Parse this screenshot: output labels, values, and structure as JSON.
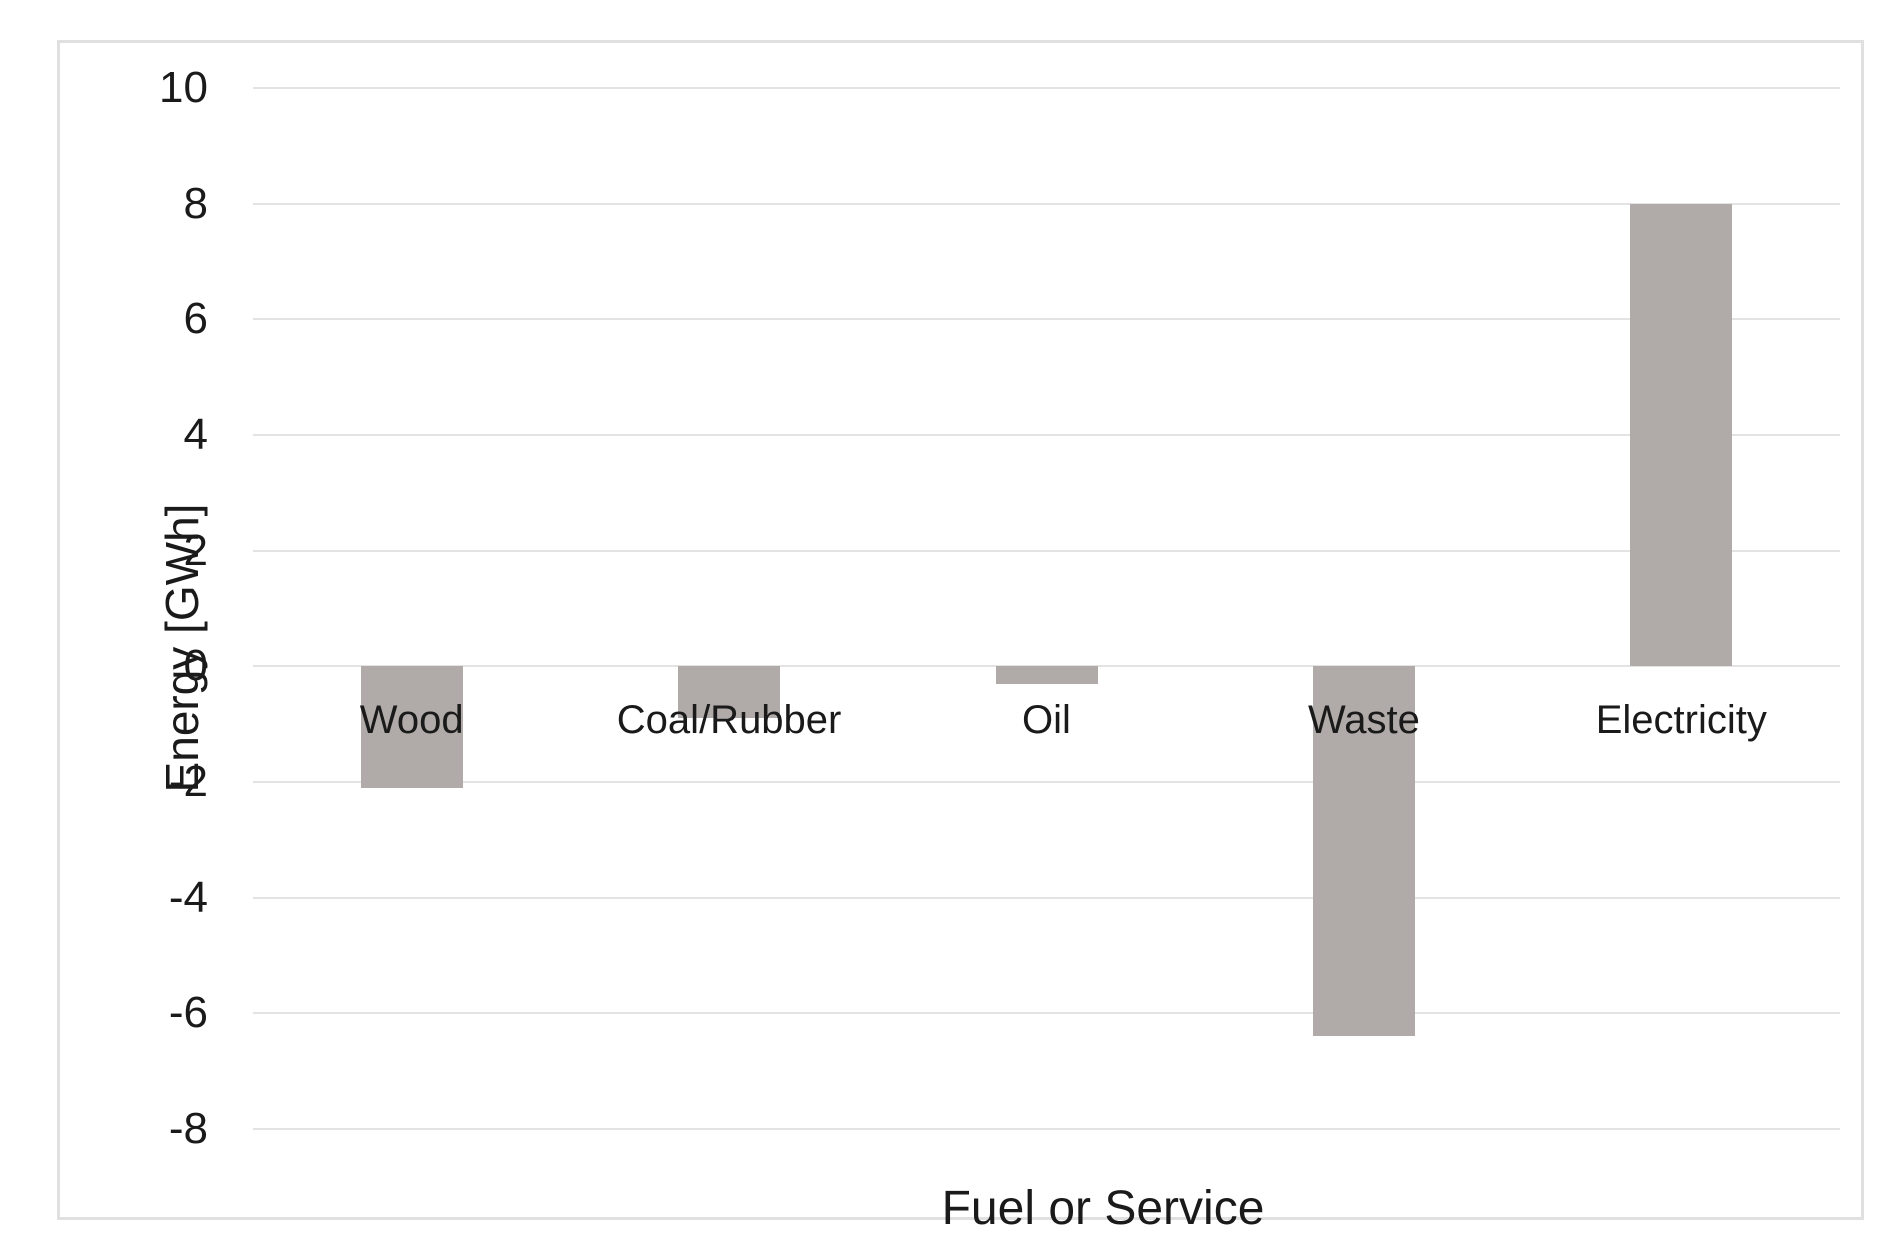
{
  "chart_data": {
    "type": "bar",
    "title": "",
    "categories": [
      "Wood",
      "Coal/Rubber",
      "Oil",
      "Waste",
      "Electricity"
    ],
    "values": [
      -2.1,
      -0.9,
      -0.3,
      -6.4,
      8.0
    ],
    "xlabel": "Fuel or Service",
    "ylabel": "Energy [GWh]",
    "ylim": [
      -8,
      10
    ],
    "yticks": [
      10,
      8,
      6,
      4,
      2,
      0,
      -2,
      -4,
      -6,
      -8
    ],
    "grid": true,
    "legend": false,
    "colors": {
      "bar": "#b0aba8",
      "gridline": "#e3e3e3",
      "frame_border": "#e0e0e0",
      "text": "#1a1a1a",
      "background": "#ffffff"
    }
  }
}
